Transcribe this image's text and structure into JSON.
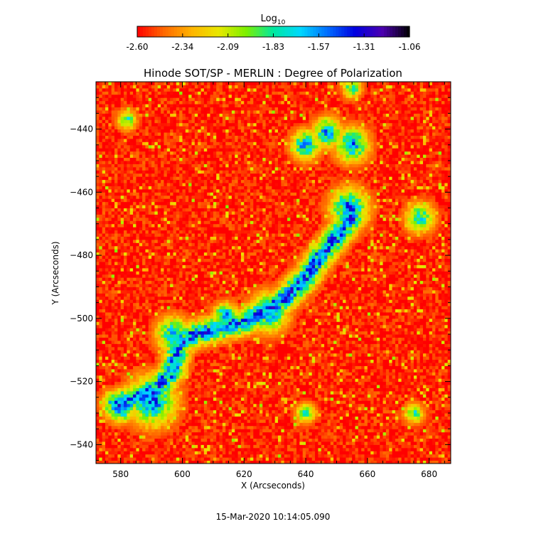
{
  "colorbar": {
    "label_main": "Log",
    "label_sub": "10",
    "ticks": [
      "-2.60",
      "-2.34",
      "-2.09",
      "-1.83",
      "-1.57",
      "-1.31",
      "-1.06"
    ],
    "range": [
      -2.6,
      -1.06
    ],
    "colormap": [
      "#ff0000",
      "#ff6a00",
      "#ffb400",
      "#e8e800",
      "#7cf000",
      "#00e8a0",
      "#00d8ff",
      "#006cff",
      "#0000e0",
      "#4c00b0",
      "#000000"
    ]
  },
  "footer": {
    "timestamp": "15-Mar-2020 10:14:05.090"
  },
  "chart_data": {
    "type": "heatmap",
    "title": "Hinode SOT/SP - MERLIN : Degree of Polarization",
    "xlabel": "X (Arcseconds)",
    "ylabel": "Y (Arcseconds)",
    "xlim": [
      572,
      687
    ],
    "ylim": [
      -546,
      -425
    ],
    "x_ticks": [
      580,
      600,
      620,
      640,
      660,
      680
    ],
    "y_ticks": [
      -440,
      -460,
      -480,
      -500,
      -520,
      -540
    ],
    "x_tick_labels": [
      "580",
      "600",
      "620",
      "640",
      "660",
      "680"
    ],
    "y_tick_labels": [
      "−440",
      "−460",
      "−480",
      "−500",
      "−520",
      "−540"
    ],
    "value_range": [
      -2.6,
      -1.06
    ],
    "background_value": -2.55,
    "features": [
      {
        "kind": "ridge",
        "value": -1.35,
        "points": [
          [
            655,
            -468
          ],
          [
            650,
            -474
          ],
          [
            645,
            -480
          ],
          [
            640,
            -487
          ],
          [
            634,
            -493
          ],
          [
            628,
            -497
          ],
          [
            620,
            -501
          ],
          [
            612,
            -503
          ],
          [
            604,
            -505
          ],
          [
            599,
            -508
          ],
          [
            597,
            -516
          ],
          [
            592,
            -522
          ],
          [
            585,
            -525
          ],
          [
            578,
            -527
          ]
        ]
      },
      {
        "kind": "patch",
        "value": -1.4,
        "center": [
          654,
          -465
        ],
        "radius": 4
      },
      {
        "kind": "patch",
        "value": -1.45,
        "center": [
          628,
          -498
        ],
        "radius": 4
      },
      {
        "kind": "patch",
        "value": -1.4,
        "center": [
          614,
          -499
        ],
        "radius": 2.5
      },
      {
        "kind": "patch",
        "value": -1.5,
        "center": [
          597,
          -505
        ],
        "radius": 3.5
      },
      {
        "kind": "patch",
        "value": -1.4,
        "center": [
          590,
          -526
        ],
        "radius": 5
      },
      {
        "kind": "patch",
        "value": -1.3,
        "center": [
          580,
          -528
        ],
        "radius": 3
      },
      {
        "kind": "patch",
        "value": -1.45,
        "center": [
          640,
          -445
        ],
        "radius": 3
      },
      {
        "kind": "patch",
        "value": -1.45,
        "center": [
          647,
          -441
        ],
        "radius": 3
      },
      {
        "kind": "patch",
        "value": -1.45,
        "center": [
          655,
          -445
        ],
        "radius": 3.5
      },
      {
        "kind": "patch",
        "value": -1.6,
        "center": [
          677,
          -468
        ],
        "radius": 3
      },
      {
        "kind": "patch",
        "value": -1.7,
        "center": [
          582,
          -437
        ],
        "radius": 2
      },
      {
        "kind": "patch",
        "value": -1.7,
        "center": [
          675,
          -530
        ],
        "radius": 2
      },
      {
        "kind": "patch",
        "value": -1.7,
        "center": [
          640,
          -530
        ],
        "radius": 2
      },
      {
        "kind": "patch",
        "value": -1.7,
        "center": [
          655,
          -427
        ],
        "radius": 2
      }
    ]
  }
}
